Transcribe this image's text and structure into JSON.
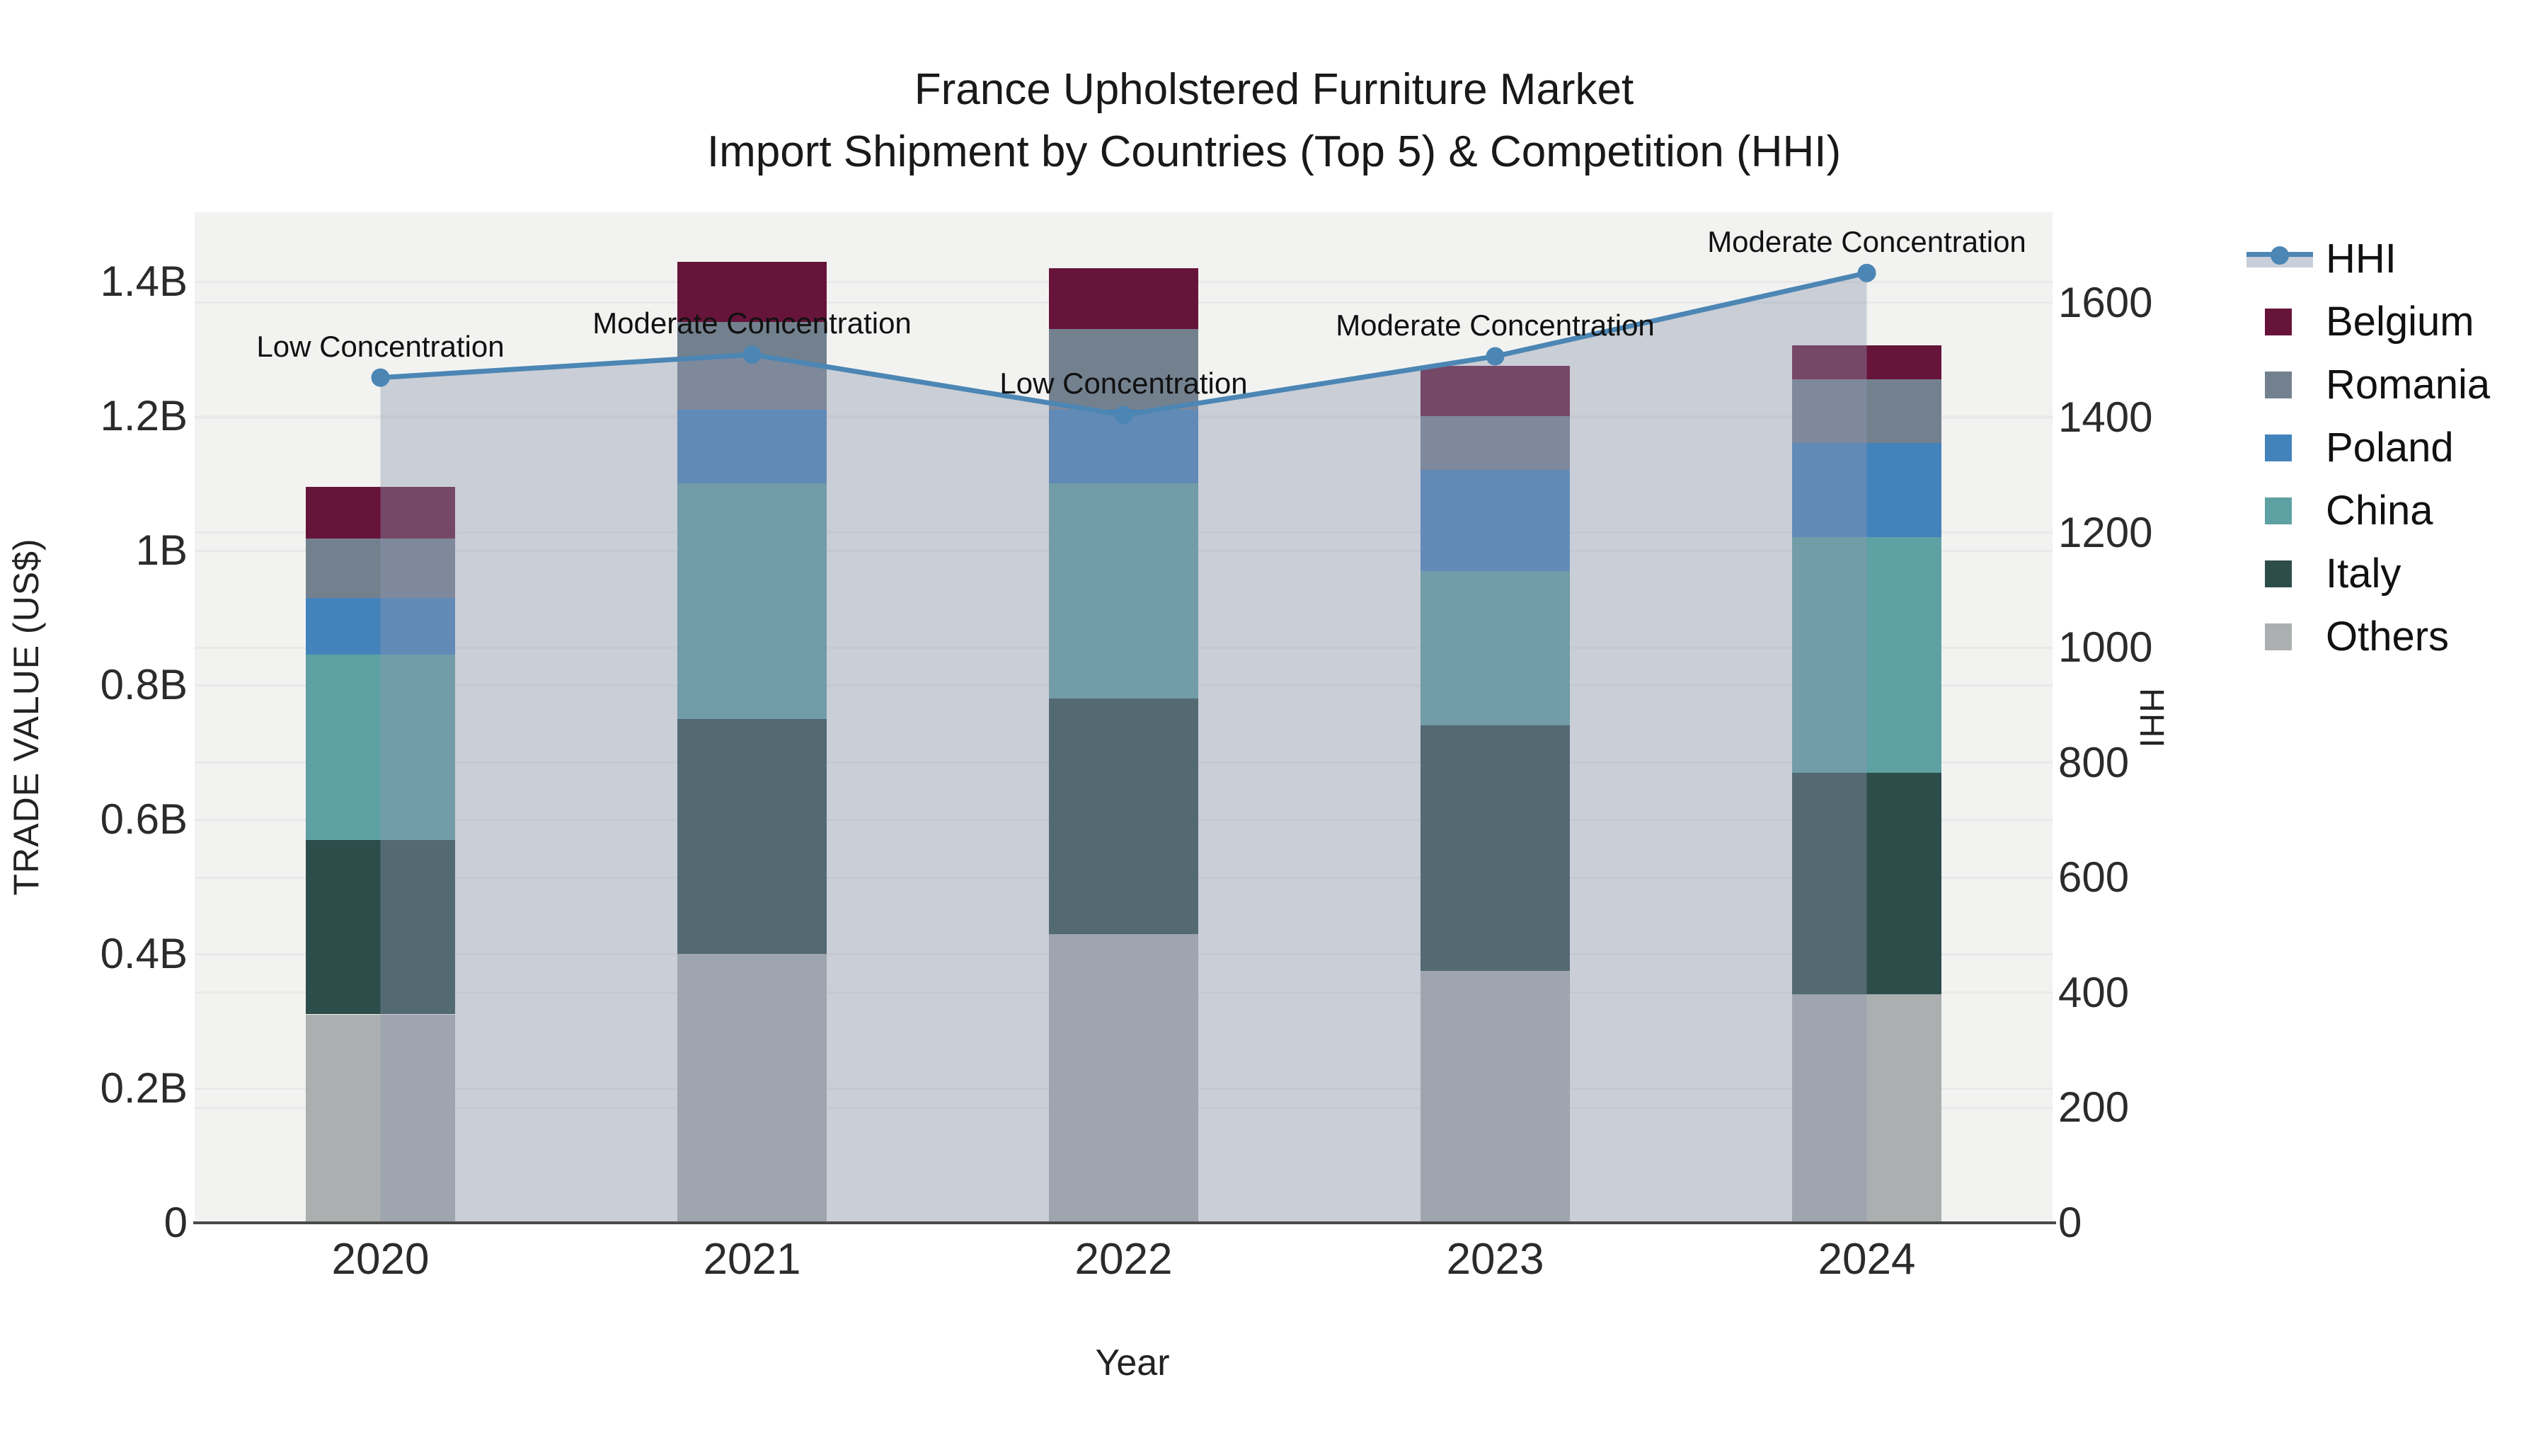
{
  "title": {
    "line1": "France Upholstered Furniture Market",
    "line2": "Import Shipment by Countries (Top 5) & Competition (HHI)"
  },
  "axes": {
    "x": {
      "title": "Year",
      "tick_labels": [
        "2020",
        "2021",
        "2022",
        "2023",
        "2024"
      ]
    },
    "left": {
      "title": "TRADE VALUE (US$)",
      "ticks": [
        {
          "label": "0",
          "value": 0
        },
        {
          "label": "0.2B",
          "value": 0.2
        },
        {
          "label": "0.4B",
          "value": 0.4
        },
        {
          "label": "0.6B",
          "value": 0.6
        },
        {
          "label": "0.8B",
          "value": 0.8
        },
        {
          "label": "1B",
          "value": 1.0
        },
        {
          "label": "1.2B",
          "value": 1.2
        },
        {
          "label": "1.4B",
          "value": 1.4
        }
      ],
      "max": 1.5032
    },
    "right": {
      "title": "HHI",
      "ticks": [
        {
          "label": "0",
          "value": 0
        },
        {
          "label": "200",
          "value": 200
        },
        {
          "label": "400",
          "value": 400
        },
        {
          "label": "600",
          "value": 600
        },
        {
          "label": "800",
          "value": 800
        },
        {
          "label": "1000",
          "value": 1000
        },
        {
          "label": "1200",
          "value": 1200
        },
        {
          "label": "1400",
          "value": 1400
        },
        {
          "label": "1600",
          "value": 1600
        }
      ],
      "max": 1757.5
    }
  },
  "chart_data": {
    "type": "combo: stacked bar (trade value, billions US$) + line with area (HHI)",
    "categories": [
      "2020",
      "2021",
      "2022",
      "2023",
      "2024"
    ],
    "unit_bars": "billion US$",
    "stack_order_bottom_to_top": [
      "Others",
      "Italy",
      "China",
      "Poland",
      "Romania",
      "Belgium"
    ],
    "series": [
      {
        "name": "Others",
        "color": "#abafaf",
        "values": [
          0.31,
          0.4,
          0.43,
          0.375,
          0.34
        ]
      },
      {
        "name": "Italy",
        "color": "#2d4d4b",
        "values": [
          0.26,
          0.35,
          0.35,
          0.365,
          0.33
        ]
      },
      {
        "name": "China",
        "color": "#5ea1a3",
        "values": [
          0.275,
          0.35,
          0.32,
          0.23,
          0.35
        ]
      },
      {
        "name": "Poland",
        "color": "#4383bc",
        "values": [
          0.085,
          0.11,
          0.11,
          0.15,
          0.14
        ]
      },
      {
        "name": "Romania",
        "color": "#73818f",
        "values": [
          0.088,
          0.13,
          0.12,
          0.08,
          0.095
        ]
      },
      {
        "name": "Belgium",
        "color": "#67143a",
        "values": [
          0.077,
          0.09,
          0.09,
          0.075,
          0.05
        ]
      }
    ],
    "bar_totals": [
      1.095,
      1.43,
      1.42,
      1.275,
      1.305
    ],
    "hhi": {
      "name": "HHI",
      "line_color": "#4c86b4",
      "area_fill": "rgba(142,150,174,0.40)",
      "values": [
        1470,
        1510,
        1405,
        1507,
        1652
      ]
    },
    "annotations": [
      "Low Concentration",
      "Moderate Concentration",
      "Low Concentration",
      "Moderate Concentration",
      "Moderate Concentration"
    ],
    "ylim_left": [
      0,
      1.5032
    ],
    "ylim_right": [
      0,
      1757.5
    ],
    "grid": true,
    "legend_position": "right"
  },
  "legend": {
    "items": [
      {
        "label": "HHI",
        "type": "line"
      },
      {
        "label": "Belgium",
        "type": "swatch",
        "color": "#67143a"
      },
      {
        "label": "Romania",
        "type": "swatch",
        "color": "#73818f"
      },
      {
        "label": "Poland",
        "type": "swatch",
        "color": "#4383bc"
      },
      {
        "label": "China",
        "type": "swatch",
        "color": "#5ea1a3"
      },
      {
        "label": "Italy",
        "type": "swatch",
        "color": "#2d4d4b"
      },
      {
        "label": "Others",
        "type": "swatch",
        "color": "#abafaf"
      }
    ]
  },
  "colors": {
    "plot_bg": "#f2f3f1",
    "gridline": "#e8e9e8",
    "axis_line": "#4a4a4a",
    "hhi_line": "#4c86b4",
    "hhi_area": "rgba(142,150,174,0.40)",
    "legend_area_band": "#c9cfda",
    "text": "#1a1a1a"
  }
}
